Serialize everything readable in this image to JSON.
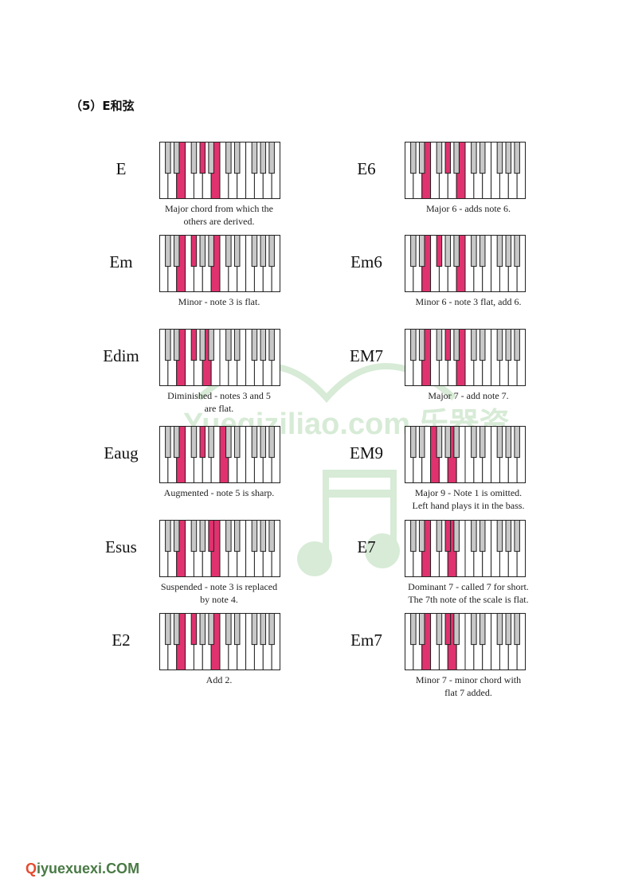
{
  "heading": "（5）E和弦",
  "colors": {
    "highlight": "#e0326e",
    "black_key": "#c8c8c8",
    "white_key": "#ffffff",
    "outline": "#222222",
    "watermark": "#b7dcb5",
    "logo_accent": "#e54b2e",
    "logo_text": "#4a7a46"
  },
  "watermark_text": "Yueqiziliao.com 乐器资料",
  "site_logo": {
    "prefix": "Q",
    "text": "iyuexuexi.COM"
  },
  "chords": [
    {
      "name": "E",
      "description": [
        "Major chord from which the",
        "others are derived."
      ],
      "white_keys": 14,
      "pressed_white": [],
      "pressed_black": []
    },
    {
      "name": "E6",
      "description": [
        "Major 6 - adds note 6."
      ],
      "white_keys": 14,
      "pressed_white": [],
      "pressed_black": []
    },
    {
      "name": "Em",
      "description": [
        "Minor - note 3 is flat."
      ],
      "white_keys": 14,
      "pressed_white": [],
      "pressed_black": []
    },
    {
      "name": "Em6",
      "description": [
        "Minor 6 - note 3 flat, add 6."
      ],
      "white_keys": 14,
      "pressed_white": [],
      "pressed_black": []
    },
    {
      "name": "Edim",
      "description": [
        "Diminished - notes 3 and 5",
        "are flat."
      ],
      "white_keys": 14,
      "pressed_white": [],
      "pressed_black": []
    },
    {
      "name": "EM7",
      "description": [
        "Major 7 - add note 7."
      ],
      "white_keys": 14,
      "pressed_white": [],
      "pressed_black": []
    },
    {
      "name": "Eaug",
      "description": [
        "Augmented - note 5 is sharp."
      ],
      "white_keys": 14,
      "pressed_white": [],
      "pressed_black": []
    },
    {
      "name": "EM9",
      "description": [
        "Major 9 - Note 1 is omitted.",
        "Left hand plays it in the bass."
      ],
      "white_keys": 14,
      "pressed_white": [],
      "pressed_black": []
    },
    {
      "name": "Esus",
      "description": [
        "Suspended - note 3 is replaced",
        "by note 4."
      ],
      "white_keys": 14,
      "pressed_white": [],
      "pressed_black": []
    },
    {
      "name": "E7",
      "description": [
        "Dominant 7 - called 7 for short.",
        "The 7th note of the scale is flat."
      ],
      "white_keys": 14,
      "pressed_white": [],
      "pressed_black": []
    },
    {
      "name": "E2",
      "description": [
        "Add 2."
      ],
      "white_keys": 14,
      "pressed_white": [],
      "pressed_black": []
    },
    {
      "name": "Em7",
      "description": [
        "Minor 7 - minor chord with",
        "flat 7 added."
      ],
      "white_keys": 14,
      "pressed_white": [],
      "pressed_black": []
    }
  ]
}
